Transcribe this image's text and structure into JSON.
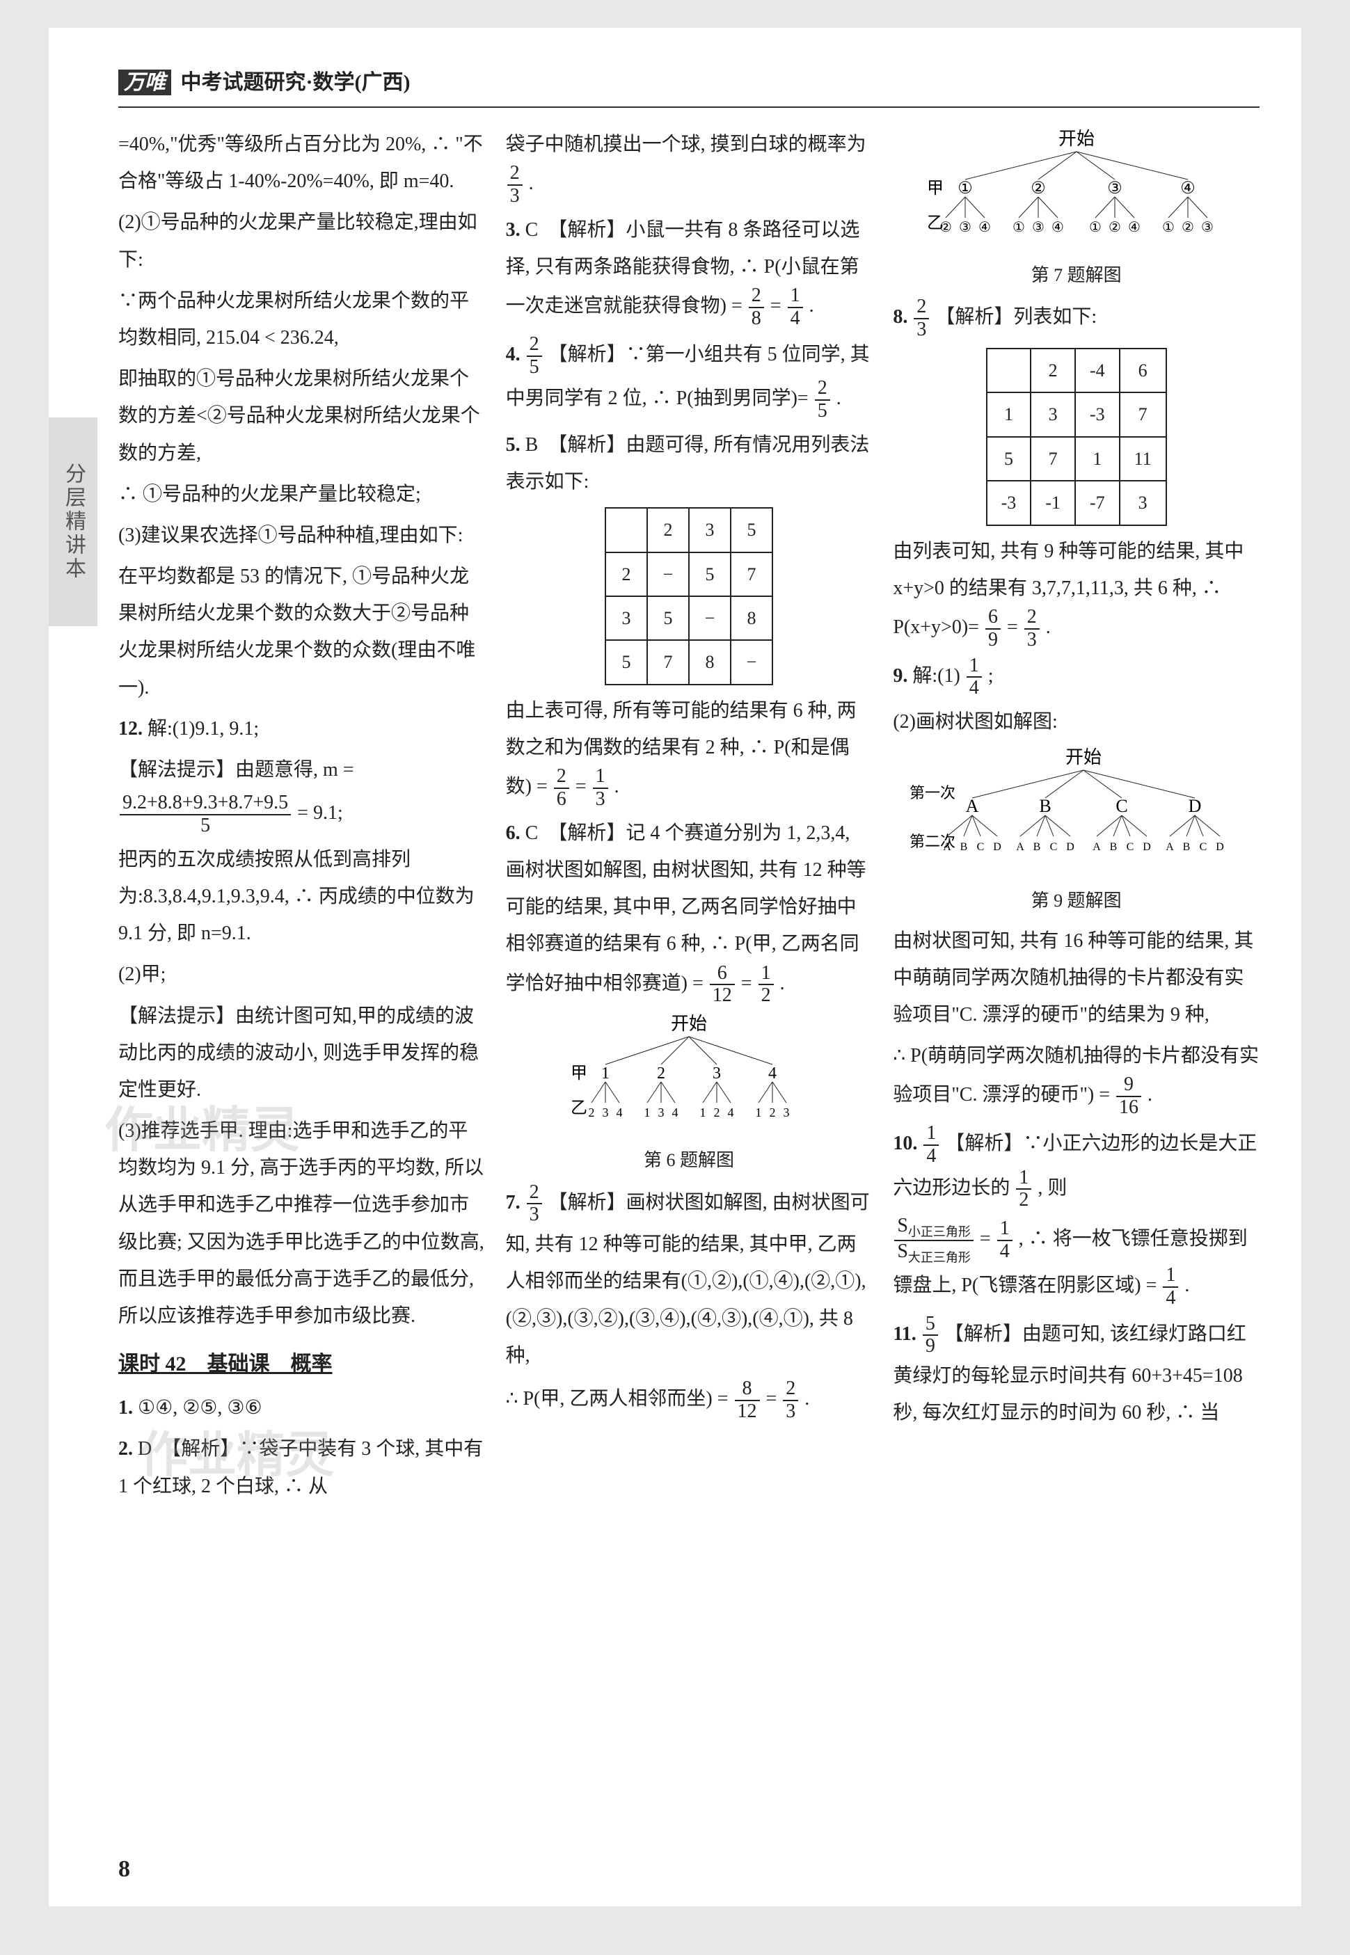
{
  "header": {
    "brand": "万唯",
    "title": "中考试题研究·数学(广西)"
  },
  "sideTab": "分层精讲本",
  "pageNum": "8",
  "col1": {
    "p1": "=40%,\"优秀\"等级所占百分比为 20%, ∴ \"不合格\"等级占 1-40%-20%=40%, 即 m=40.",
    "p2": "(2)①号品种的火龙果产量比较稳定,理由如下:",
    "p3": "∵两个品种火龙果树所结火龙果个数的平均数相同, 215.04 < 236.24,",
    "p4": "即抽取的①号品种火龙果树所结火龙果个数的方差<②号品种火龙果树所结火龙果个数的方差,",
    "p5": "∴ ①号品种的火龙果产量比较稳定;",
    "p6": "(3)建议果农选择①号品种种植,理由如下:",
    "p7": "在平均数都是 53 的情况下, ①号品种火龙果树所结火龙果个数的众数大于②号品种火龙果树所结火龙果个数的众数(理由不唯一).",
    "q12": "12.",
    "q12a": "解:(1)9.1, 9.1;",
    "q12hint1": "【解法提示】由题意得, m =",
    "q12frac_top": "9.2+8.8+9.3+8.7+9.5",
    "q12frac_bot": "5",
    "q12eq": "= 9.1;",
    "q12b": "把丙的五次成绩按照从低到高排列为:8.3,8.4,9.1,9.3,9.4, ∴ 丙成绩的中位数为 9.1 分, 即 n=9.1.",
    "q12c": "(2)甲;",
    "q12hint2": "【解法提示】由统计图可知,甲的成绩的波动比丙的成绩的波动小, 则选手甲发挥的稳定性更好.",
    "q12d": "(3)推荐选手甲. 理由:选手甲和选手乙的平均数均为 9.1 分, 高于选手丙的平均数, 所以从选手甲和选手乙中推荐一位选手参加市级比赛; 又因为选手甲比选手乙的中位数高, 而且选手甲的最低分高于选手乙的最低分, 所以应该推荐选手甲参加市级比赛.",
    "sectionTitle": "课时 42　基础课　概率",
    "s1": "①④, ②⑤, ③⑥",
    "s2": "D　【解析】∵袋子中装有 3 个球, 其中有 1 个红球, 2 个白球, ∴ 从"
  },
  "col2": {
    "p1_a": "袋子中随机摸出一个球, 摸到白球的概率为",
    "p1_b": ".",
    "q3": "C　【解析】小鼠一共有 8 条路径可以选择, 只有两条路能获得食物, ∴ P(小鼠在第一次走迷宫就能获得食物) =",
    "q3eq": ".",
    "q4a": "【解析】∵第一小组共有 5 位同学, 其中男同学有 2 位, ∴ P(抽到男同学)=",
    "q4b": ".",
    "q5": "B　【解析】由题可得, 所有情况用列表法表示如下:",
    "q5table": {
      "header": [
        "",
        "2",
        "3",
        "5"
      ],
      "rows": [
        [
          "2",
          "−",
          "5",
          "7"
        ],
        [
          "3",
          "5",
          "−",
          "8"
        ],
        [
          "5",
          "7",
          "8",
          "−"
        ]
      ]
    },
    "q5after_a": "由上表可得, 所有等可能的结果有 6 种, 两数之和为偶数的结果有 2 种, ∴ P(和是偶数) = ",
    "q5after_b": " = ",
    "q5after_c": ".",
    "q6": "C　【解析】记 4 个赛道分别为 1, 2,3,4, 画树状图如解图, 由树状图知, 共有 12 种等可能的结果, 其中甲, 乙两名同学恰好抽中相邻赛道的结果有 6 种, ∴ P(甲, 乙两名同学恰好抽中相邻赛道) =",
    "q6eq_b": " = ",
    "q6eq_c": ".",
    "tree6": {
      "root": "开始",
      "l1_label": "甲",
      "l1": [
        "1",
        "2",
        "3",
        "4"
      ],
      "l2_label": "乙",
      "l2": [
        "234",
        "134",
        "124",
        "123"
      ],
      "caption": "第 6 题解图"
    },
    "q7a": "【解析】画树状图如解图, 由树状图可知, 共有 12 种等可能的结果, 其中甲, 乙两人相邻而坐的结果有(①,②),(①,④),(②,①),(②,③),(③,②),(③,④),(④,③),(④,①), 共 8 种,",
    "q7b": "∴ P(甲, 乙两人相邻而坐) = ",
    "q7c": " = ",
    "q7d": "."
  },
  "col3": {
    "tree7": {
      "root": "开始",
      "l1_label": "甲",
      "l1": [
        "①",
        "②",
        "③",
        "④"
      ],
      "l2_label": "乙",
      "l2": [
        "②③④",
        "①③④",
        "①②④",
        "①②③"
      ],
      "caption": "第 7 题解图"
    },
    "q8a": "【解析】列表如下:",
    "q8table": {
      "header": [
        "",
        "2",
        "-4",
        "6"
      ],
      "rows": [
        [
          "1",
          "3",
          "-3",
          "7"
        ],
        [
          "5",
          "7",
          "1",
          "11"
        ],
        [
          "-3",
          "-1",
          "-7",
          "3"
        ]
      ]
    },
    "q8b_a": "由列表可知, 共有 9 种等可能的结果, 其中 x+y>0 的结果有 3,7,7,1,11,3, 共 6 种, ∴ P(x+y>0)=",
    "q8b_b": " = ",
    "q8b_c": ".",
    "q9a": "解:(1)",
    "q9a2": ";",
    "q9b": "(2)画树状图如解图:",
    "tree9": {
      "root": "开始",
      "l1_label": "第一次",
      "l1": [
        "A",
        "B",
        "C",
        "D"
      ],
      "l2_label": "第二次",
      "l2cells": [
        "A B C D",
        "A B C D",
        "A B C D",
        "A B C D"
      ],
      "caption": "第 9 题解图"
    },
    "q9c": "由树状图可知, 共有 16 种等可能的结果, 其中萌萌同学两次随机抽得的卡片都没有实验项目\"C. 漂浮的硬币\"的结果为 9 种,",
    "q9d": "∴ P(萌萌同学两次随机抽得的卡片都没有实验项目\"C. 漂浮的硬币\") = ",
    "q9e": ".",
    "q10a": "【解析】∵小正六边形的边长是大正六边形边长的",
    "q10b": ", 则",
    "q10c_a": " = ",
    "q10c_b": ", ∴ 将一枚飞镖任意投掷到镖盘上, P(飞镖落在阴影区域) = ",
    "q10c_c": ".",
    "q11a": "【解析】由题可知, 该红绿灯路口红黄绿灯的每轮显示时间共有 60+3+45=108 秒, 每次红灯显示的时间为 60 秒, ∴ 当"
  },
  "watermark1": "作业精灵",
  "watermark2": "作业精灵"
}
